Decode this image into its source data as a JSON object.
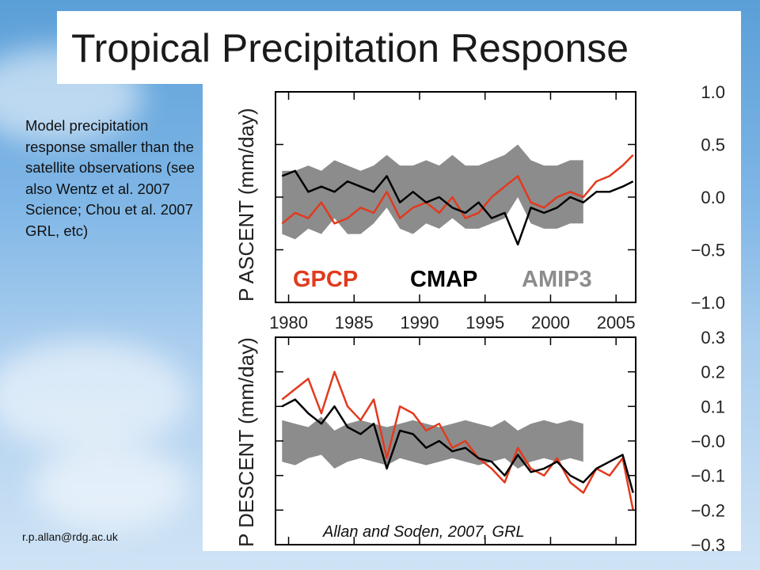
{
  "slide": {
    "title": "Tropical Precipitation Response",
    "description": "Model precipitation response smaller than the satellite observations (see also Wentz et al. 2007 Science; Chou et al. 2007 GRL, etc)",
    "email": "r.p.allan@rdg.ac.uk",
    "citation": "Allan and Soden, 2007, GRL"
  },
  "colors": {
    "gpcp": "#e23a1e",
    "cmap": "#000000",
    "amip3": "#8c8c8c"
  },
  "chart_data": [
    {
      "type": "line",
      "ylabel": "P ASCENT (mm/day)",
      "legend": [
        "GPCP",
        "CMAP",
        "AMIP3"
      ],
      "xlim": [
        1979,
        2006.5
      ],
      "ylim": [
        -1.0,
        1.0
      ],
      "x_ticks": [
        "1980",
        "1985",
        "1990",
        "1995",
        "2000",
        "2005"
      ],
      "y_ticks": [
        "1.0",
        "0.5",
        "0.0",
        "−0.5",
        "−1.0"
      ],
      "y_tick_values": [
        1.0,
        0.5,
        0.0,
        -0.5,
        -1.0
      ],
      "x": [
        1979.5,
        1980.5,
        1981.5,
        1982.5,
        1983.5,
        1984.5,
        1985.5,
        1986.5,
        1987.5,
        1988.5,
        1989.5,
        1990.5,
        1991.5,
        1992.5,
        1993.5,
        1994.5,
        1995.5,
        1996.5,
        1997.5,
        1998.5,
        1999.5,
        2000.5,
        2001.5,
        2002.5,
        2003.5,
        2004.5,
        2005.5,
        2006.3
      ],
      "series": [
        {
          "name": "AMIP3",
          "kind": "band",
          "x_end": 2002.5,
          "upper": [
            0.25,
            0.25,
            0.3,
            0.25,
            0.35,
            0.3,
            0.25,
            0.3,
            0.4,
            0.3,
            0.3,
            0.35,
            0.3,
            0.4,
            0.3,
            0.3,
            0.35,
            0.4,
            0.5,
            0.35,
            0.3,
            0.3,
            0.35,
            0.35
          ],
          "lower": [
            -0.35,
            -0.4,
            -0.3,
            -0.35,
            -0.2,
            -0.35,
            -0.35,
            -0.25,
            -0.1,
            -0.3,
            -0.35,
            -0.25,
            -0.3,
            -0.2,
            -0.3,
            -0.3,
            -0.25,
            -0.2,
            0.0,
            -0.25,
            -0.3,
            -0.3,
            -0.25,
            -0.25
          ]
        },
        {
          "name": "GPCP",
          "kind": "line",
          "values": [
            -0.25,
            -0.15,
            -0.2,
            -0.05,
            -0.25,
            -0.2,
            -0.1,
            -0.15,
            0.05,
            -0.2,
            -0.1,
            -0.05,
            -0.15,
            0.0,
            -0.2,
            -0.15,
            0.0,
            0.1,
            0.2,
            -0.05,
            -0.1,
            0.0,
            0.05,
            0.0,
            0.15,
            0.2,
            0.3,
            0.4
          ]
        },
        {
          "name": "CMAP",
          "kind": "line",
          "values": [
            0.2,
            0.25,
            0.05,
            0.1,
            0.05,
            0.15,
            0.1,
            0.05,
            0.2,
            -0.05,
            0.05,
            -0.05,
            0.0,
            -0.1,
            -0.15,
            -0.05,
            -0.2,
            -0.15,
            -0.45,
            -0.1,
            -0.15,
            -0.1,
            0.0,
            -0.05,
            0.05,
            0.05,
            0.1,
            0.15
          ]
        }
      ]
    },
    {
      "type": "line",
      "ylabel": "P DESCENT (mm/day)",
      "xlim": [
        1979,
        2006.5
      ],
      "ylim": [
        -0.3,
        0.3
      ],
      "y_ticks": [
        "0.3",
        "0.2",
        "0.1",
        "−0.0",
        "−0.1",
        "−0.2",
        "−0.3"
      ],
      "y_tick_values": [
        0.3,
        0.2,
        0.1,
        0.0,
        -0.1,
        -0.2,
        -0.3
      ],
      "x": [
        1979.5,
        1980.5,
        1981.5,
        1982.5,
        1983.5,
        1984.5,
        1985.5,
        1986.5,
        1987.5,
        1988.5,
        1989.5,
        1990.5,
        1991.5,
        1992.5,
        1993.5,
        1994.5,
        1995.5,
        1996.5,
        1997.5,
        1998.5,
        1999.5,
        2000.5,
        2001.5,
        2002.5,
        2003.5,
        2004.5,
        2005.5,
        2006.3
      ],
      "series": [
        {
          "name": "AMIP3",
          "kind": "band",
          "x_end": 2002.5,
          "upper": [
            0.06,
            0.05,
            0.04,
            0.07,
            0.03,
            0.05,
            0.06,
            0.05,
            0.04,
            0.05,
            0.06,
            0.05,
            0.04,
            0.05,
            0.06,
            0.05,
            0.04,
            0.06,
            0.03,
            0.05,
            0.06,
            0.05,
            0.06,
            0.05
          ],
          "lower": [
            -0.06,
            -0.07,
            -0.05,
            -0.04,
            -0.08,
            -0.06,
            -0.05,
            -0.06,
            -0.07,
            -0.05,
            -0.06,
            -0.07,
            -0.06,
            -0.05,
            -0.06,
            -0.07,
            -0.06,
            -0.05,
            -0.08,
            -0.06,
            -0.05,
            -0.06,
            -0.05,
            -0.06
          ]
        },
        {
          "name": "GPCP",
          "kind": "line",
          "values": [
            0.12,
            0.15,
            0.18,
            0.08,
            0.2,
            0.1,
            0.06,
            0.12,
            -0.05,
            0.1,
            0.08,
            0.03,
            0.05,
            -0.02,
            0.0,
            -0.05,
            -0.08,
            -0.12,
            -0.02,
            -0.08,
            -0.1,
            -0.05,
            -0.12,
            -0.15,
            -0.08,
            -0.1,
            -0.05,
            -0.2
          ]
        },
        {
          "name": "CMAP",
          "kind": "line",
          "values": [
            0.1,
            0.12,
            0.08,
            0.05,
            0.1,
            0.04,
            0.02,
            0.05,
            -0.08,
            0.03,
            0.02,
            -0.02,
            0.0,
            -0.03,
            -0.02,
            -0.05,
            -0.06,
            -0.1,
            -0.04,
            -0.09,
            -0.08,
            -0.06,
            -0.1,
            -0.12,
            -0.08,
            -0.06,
            -0.04,
            -0.15
          ]
        }
      ]
    }
  ]
}
